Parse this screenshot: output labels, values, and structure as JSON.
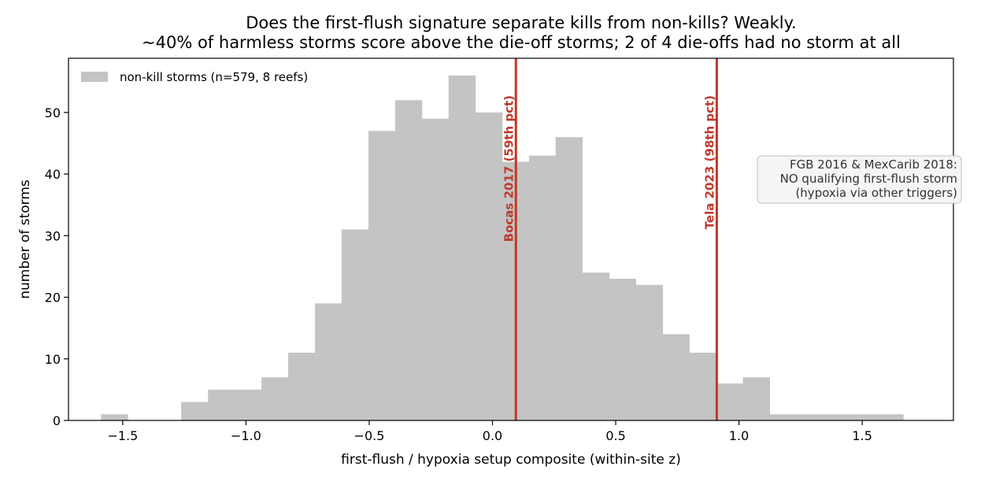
{
  "chart_data": {
    "type": "bar",
    "title": "Does the first-flush signature separate kills from non-kills? Weakly.",
    "subtitle": "~40% of harmless storms score above the die-off storms; 2 of 4 die-offs had no storm at all",
    "xlabel": "first-flush / hypoxia setup composite (within-site z)",
    "ylabel": "number of storms",
    "xlim": [
      -1.72,
      1.87
    ],
    "ylim": [
      0,
      58.8
    ],
    "xticks": [
      -1.5,
      -1.0,
      -0.5,
      0.0,
      0.5,
      1.0,
      1.5
    ],
    "xtick_labels": [
      "−1.5",
      "−1.0",
      "−0.5",
      "0.0",
      "0.5",
      "1.0",
      "1.5"
    ],
    "yticks": [
      0,
      10,
      20,
      30,
      40,
      50
    ],
    "ytick_labels": [
      "0",
      "10",
      "20",
      "30",
      "40",
      "50"
    ],
    "grid": false,
    "legend_position": "top-left",
    "series": [
      {
        "name": "non-kill storms (n=579, 8 reefs)",
        "color": "#c4c4c4",
        "bin_width": 0.1085,
        "bin_starts": [
          -1.588,
          -1.48,
          -1.371,
          -1.263,
          -1.154,
          -1.046,
          -0.937,
          -0.829,
          -0.72,
          -0.612,
          -0.503,
          -0.395,
          -0.286,
          -0.178,
          -0.069,
          0.039,
          0.148,
          0.256,
          0.365,
          0.473,
          0.582,
          0.69,
          0.799,
          0.907,
          1.016,
          1.124,
          1.233,
          1.341,
          1.45,
          1.558
        ],
        "values": [
          1,
          0,
          0,
          3,
          5,
          5,
          7,
          11,
          19,
          31,
          47,
          52,
          49,
          56,
          50,
          42,
          43,
          46,
          24,
          23,
          22,
          14,
          11,
          6,
          7,
          1,
          1,
          1,
          1,
          1
        ]
      }
    ],
    "reference_lines": [
      {
        "x": 0.095,
        "label": "Bocas 2017 (59th pct)",
        "color": "#c0392b"
      },
      {
        "x": 0.91,
        "label": "Tela 2023 (98th pct)",
        "color": "#c0392b"
      }
    ],
    "annotation": {
      "lines": [
        "FGB 2016 & MexCarib 2018:",
        "NO qualifying first-flush storm",
        "(hypoxia via other triggers)"
      ],
      "position": "right"
    }
  }
}
